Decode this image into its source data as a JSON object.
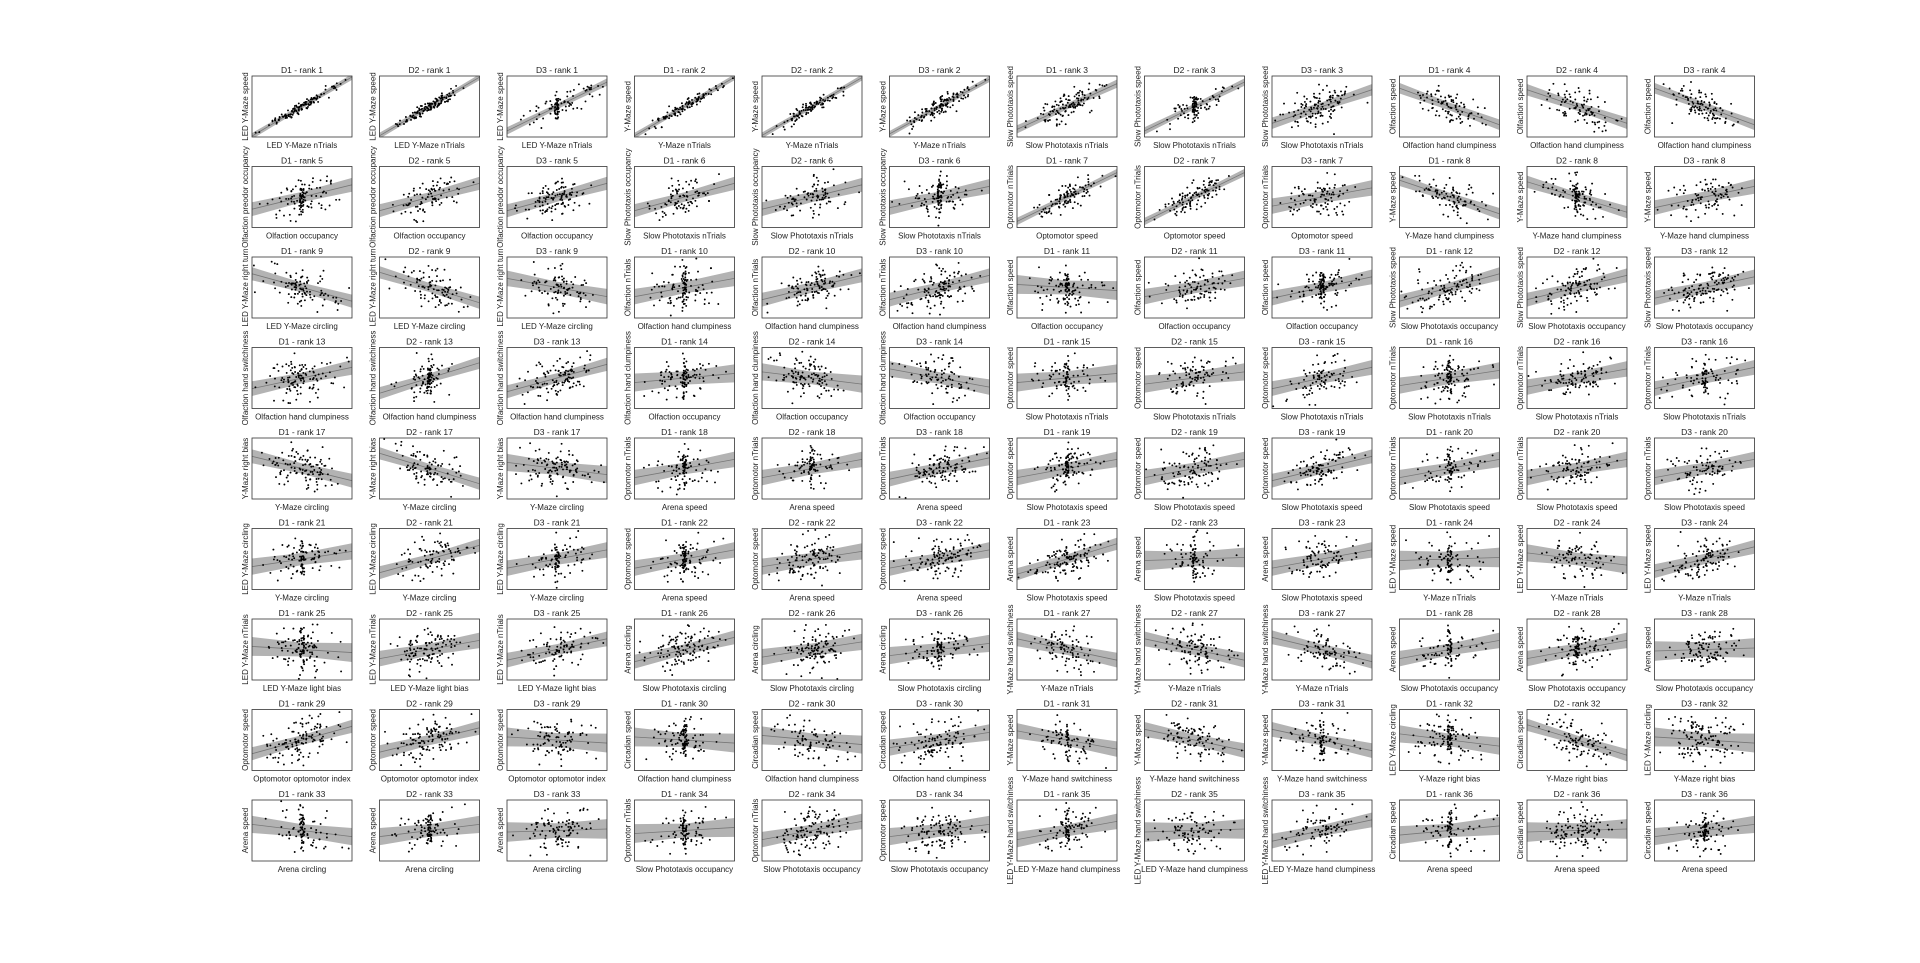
{
  "chart_data": {
    "type": "scatter",
    "layout": "grid",
    "rows": 9,
    "cols": 12,
    "grid": false,
    "regression_line": true,
    "confidence_band": true,
    "colors": {
      "points": "#000000",
      "band": "#b3b3b3",
      "line": "#777777",
      "axes": "#333333"
    },
    "panels": [
      {
        "title": "D1 - rank 1",
        "xlabel": "LED Y-Maze nTrials",
        "ylabel": "LED Y-Maze speed",
        "r": 0.97
      },
      {
        "title": "D2 - rank 1",
        "xlabel": "LED Y-Maze nTrials",
        "ylabel": "LED Y-Maze speed",
        "r": 0.96
      },
      {
        "title": "D3 - rank 1",
        "xlabel": "LED Y-Maze nTrials",
        "ylabel": "LED Y-Maze speed",
        "r": 0.8
      },
      {
        "title": "D1 - rank 2",
        "xlabel": "Y-Maze nTrials",
        "ylabel": "Y-Maze speed",
        "r": 0.96
      },
      {
        "title": "D2 - rank 2",
        "xlabel": "Y-Maze nTrials",
        "ylabel": "Y-Maze speed",
        "r": 0.95
      },
      {
        "title": "D3 - rank 2",
        "xlabel": "Y-Maze nTrials",
        "ylabel": "Y-Maze speed",
        "r": 0.9
      },
      {
        "title": "D1 - rank 3",
        "xlabel": "Slow Phototaxis nTrials",
        "ylabel": "Slow Phototaxis speed",
        "r": 0.75
      },
      {
        "title": "D2 - rank 3",
        "xlabel": "Slow Phototaxis nTrials",
        "ylabel": "Slow Phototaxis speed",
        "r": 0.8
      },
      {
        "title": "D3 - rank 3",
        "xlabel": "Slow Phototaxis nTrials",
        "ylabel": "Slow Phototaxis speed",
        "r": 0.55
      },
      {
        "title": "D1 - rank 4",
        "xlabel": "Olfaction hand clumpiness",
        "ylabel": "Olfaction speed",
        "r": -0.6
      },
      {
        "title": "D2 - rank 4",
        "xlabel": "Olfaction hand clumpiness",
        "ylabel": "Olfaction speed",
        "r": -0.55
      },
      {
        "title": "D3 - rank 4",
        "xlabel": "Olfaction hand clumpiness",
        "ylabel": "Olfaction speed",
        "r": -0.6
      },
      {
        "title": "D1 - rank 5",
        "xlabel": "Olfaction occupancy",
        "ylabel": "Olfaction preodor occupancy",
        "r": 0.4
      },
      {
        "title": "D2 - rank 5",
        "xlabel": "Olfaction occupancy",
        "ylabel": "Olfaction preodor occupancy",
        "r": 0.45
      },
      {
        "title": "D3 - rank 5",
        "xlabel": "Olfaction occupancy",
        "ylabel": "Olfaction preodor occupancy",
        "r": 0.45
      },
      {
        "title": "D1 - rank 6",
        "xlabel": "Slow Phototaxis nTrials",
        "ylabel": "Slow Phototaxis occupancy",
        "r": 0.45
      },
      {
        "title": "D2 - rank 6",
        "xlabel": "Slow Phototaxis nTrials",
        "ylabel": "Slow Phototaxis occupancy",
        "r": 0.4
      },
      {
        "title": "D3 - rank 6",
        "xlabel": "Slow Phototaxis nTrials",
        "ylabel": "Slow Phototaxis occupancy",
        "r": 0.35
      },
      {
        "title": "D1 - rank 7",
        "xlabel": "Optomotor speed",
        "ylabel": "Optomotor nTrials",
        "r": 0.8
      },
      {
        "title": "D2 - rank 7",
        "xlabel": "Optomotor speed",
        "ylabel": "Optomotor nTrials",
        "r": 0.8
      },
      {
        "title": "D3 - rank 7",
        "xlabel": "Optomotor speed",
        "ylabel": "Optomotor nTrials",
        "r": 0.3
      },
      {
        "title": "D1 - rank 8",
        "xlabel": "Y-Maze hand clumpiness",
        "ylabel": "Y-Maze speed",
        "r": -0.55
      },
      {
        "title": "D2 - rank 8",
        "xlabel": "Y-Maze hand clumpiness",
        "ylabel": "Y-Maze speed",
        "r": -0.5
      },
      {
        "title": "D3 - rank 8",
        "xlabel": "Y-Maze hand clumpiness",
        "ylabel": "Y-Maze speed",
        "r": 0.35
      },
      {
        "title": "D1 - rank 9",
        "xlabel": "LED Y-Maze circling",
        "ylabel": "LED Y-Maze right turn",
        "r": -0.45
      },
      {
        "title": "D2 - rank 9",
        "xlabel": "LED Y-Maze circling",
        "ylabel": "LED Y-Maze right turn",
        "r": -0.5
      },
      {
        "title": "D3 - rank 9",
        "xlabel": "LED Y-Maze circling",
        "ylabel": "LED Y-Maze right turn",
        "r": -0.3
      },
      {
        "title": "D1 - rank 10",
        "xlabel": "Olfaction hand clumpiness",
        "ylabel": "Olfaction nTrials",
        "r": 0.3
      },
      {
        "title": "D2 - rank 10",
        "xlabel": "Olfaction hand clumpiness",
        "ylabel": "Olfaction nTrials",
        "r": 0.4
      },
      {
        "title": "D3 - rank 10",
        "xlabel": "Olfaction hand clumpiness",
        "ylabel": "Olfaction nTrials",
        "r": 0.4
      },
      {
        "title": "D1 - rank 11",
        "xlabel": "Olfaction occupancy",
        "ylabel": "Olfaction speed",
        "r": -0.1
      },
      {
        "title": "D2 - rank 11",
        "xlabel": "Olfaction occupancy",
        "ylabel": "Olfaction speed",
        "r": 0.3
      },
      {
        "title": "D3 - rank 11",
        "xlabel": "Olfaction occupancy",
        "ylabel": "Olfaction speed",
        "r": 0.35
      },
      {
        "title": "D1 - rank 12",
        "xlabel": "Slow Phototaxis occupancy",
        "ylabel": "Slow Phototaxis speed",
        "r": 0.45
      },
      {
        "title": "D2 - rank 12",
        "xlabel": "Slow Phototaxis occupancy",
        "ylabel": "Slow Phototaxis speed",
        "r": 0.4
      },
      {
        "title": "D3 - rank 12",
        "xlabel": "Slow Phototaxis occupancy",
        "ylabel": "Slow Phototaxis speed",
        "r": 0.35
      },
      {
        "title": "D1 - rank 13",
        "xlabel": "Olfaction hand clumpiness",
        "ylabel": "Olfaction hand switchiness",
        "r": 0.35
      },
      {
        "title": "D2 - rank 13",
        "xlabel": "Olfaction hand clumpiness",
        "ylabel": "Olfaction hand switchiness",
        "r": 0.5
      },
      {
        "title": "D3 - rank 13",
        "xlabel": "Olfaction hand clumpiness",
        "ylabel": "Olfaction hand switchiness",
        "r": 0.45
      },
      {
        "title": "D1 - rank 14",
        "xlabel": "Olfaction occupancy",
        "ylabel": "Olfaction hand clumpiness",
        "r": 0.15
      },
      {
        "title": "D2 - rank 14",
        "xlabel": "Olfaction occupancy",
        "ylabel": "Olfaction hand clumpiness",
        "r": -0.2
      },
      {
        "title": "D3 - rank 14",
        "xlabel": "Olfaction occupancy",
        "ylabel": "Olfaction hand clumpiness",
        "r": -0.3
      },
      {
        "title": "D1 - rank 15",
        "xlabel": "Slow Phototaxis nTrials",
        "ylabel": "Optomotor speed",
        "r": 0.15
      },
      {
        "title": "D2 - rank 15",
        "xlabel": "Slow Phototaxis nTrials",
        "ylabel": "Optomotor speed",
        "r": 0.2
      },
      {
        "title": "D3 - rank 15",
        "xlabel": "Slow Phototaxis nTrials",
        "ylabel": "Optomotor speed",
        "r": 0.35
      },
      {
        "title": "D1 - rank 16",
        "xlabel": "Slow Phototaxis nTrials",
        "ylabel": "Optomotor nTrials",
        "r": 0.25
      },
      {
        "title": "D2 - rank 16",
        "xlabel": "Slow Phototaxis nTrials",
        "ylabel": "Optomotor nTrials",
        "r": 0.3
      },
      {
        "title": "D3 - rank 16",
        "xlabel": "Slow Phototaxis nTrials",
        "ylabel": "Optomotor nTrials",
        "r": 0.35
      },
      {
        "title": "D1 - rank 17",
        "xlabel": "Y-Maze circling",
        "ylabel": "Y-Maze right bias",
        "r": -0.4
      },
      {
        "title": "D2 - rank 17",
        "xlabel": "Y-Maze circling",
        "ylabel": "Y-Maze right bias",
        "r": -0.5
      },
      {
        "title": "D3 - rank 17",
        "xlabel": "Y-Maze circling",
        "ylabel": "Y-Maze right bias",
        "r": -0.2
      },
      {
        "title": "D1 - rank 18",
        "xlabel": "Arena speed",
        "ylabel": "Optomotor nTrials",
        "r": 0.3
      },
      {
        "title": "D2 - rank 18",
        "xlabel": "Arena speed",
        "ylabel": "Optomotor nTrials",
        "r": 0.3
      },
      {
        "title": "D3 - rank 18",
        "xlabel": "Arena speed",
        "ylabel": "Optomotor nTrials",
        "r": 0.35
      },
      {
        "title": "D1 - rank 19",
        "xlabel": "Slow Phototaxis speed",
        "ylabel": "Optomotor speed",
        "r": 0.3
      },
      {
        "title": "D2 - rank 19",
        "xlabel": "Slow Phototaxis speed",
        "ylabel": "Optomotor speed",
        "r": 0.3
      },
      {
        "title": "D3 - rank 19",
        "xlabel": "Slow Phototaxis speed",
        "ylabel": "Optomotor speed",
        "r": 0.4
      },
      {
        "title": "D1 - rank 20",
        "xlabel": "Slow Phototaxis speed",
        "ylabel": "Optomotor nTrials",
        "r": 0.3
      },
      {
        "title": "D2 - rank 20",
        "xlabel": "Slow Phototaxis speed",
        "ylabel": "Optomotor nTrials",
        "r": 0.3
      },
      {
        "title": "D3 - rank 20",
        "xlabel": "Slow Phototaxis speed",
        "ylabel": "Optomotor nTrials",
        "r": 0.3
      },
      {
        "title": "D1 - rank 21",
        "xlabel": "Y-Maze circling",
        "ylabel": "LED Y-Maze circling",
        "r": 0.25
      },
      {
        "title": "D2 - rank 21",
        "xlabel": "Y-Maze circling",
        "ylabel": "LED Y-Maze circling",
        "r": 0.45
      },
      {
        "title": "D3 - rank 21",
        "xlabel": "Y-Maze circling",
        "ylabel": "LED Y-Maze circling",
        "r": 0.3
      },
      {
        "title": "D1 - rank 22",
        "xlabel": "Arena speed",
        "ylabel": "Optomotor speed",
        "r": 0.3
      },
      {
        "title": "D2 - rank 22",
        "xlabel": "Arena speed",
        "ylabel": "Optomotor speed",
        "r": 0.25
      },
      {
        "title": "D3 - rank 22",
        "xlabel": "Arena speed",
        "ylabel": "Optomotor speed",
        "r": 0.3
      },
      {
        "title": "D1 - rank 23",
        "xlabel": "Slow Phototaxis speed",
        "ylabel": "Arena speed",
        "r": 0.5
      },
      {
        "title": "D2 - rank 23",
        "xlabel": "Slow Phototaxis speed",
        "ylabel": "Arena speed",
        "r": 0.05
      },
      {
        "title": "D3 - rank 23",
        "xlabel": "Slow Phototaxis speed",
        "ylabel": "Arena speed",
        "r": 0.3
      },
      {
        "title": "D1 - rank 24",
        "xlabel": "Y-Maze nTrials",
        "ylabel": "LED Y-Maze speed",
        "r": 0.05
      },
      {
        "title": "D2 - rank 24",
        "xlabel": "Y-Maze nTrials",
        "ylabel": "LED Y-Maze speed",
        "r": -0.2
      },
      {
        "title": "D3 - rank 24",
        "xlabel": "Y-Maze nTrials",
        "ylabel": "LED Y-Maze speed",
        "r": 0.4
      },
      {
        "title": "D1 - rank 25",
        "xlabel": "LED Y-Maze light bias",
        "ylabel": "LED Y-Maze nTrials",
        "r": -0.1
      },
      {
        "title": "D2 - rank 25",
        "xlabel": "LED Y-Maze light bias",
        "ylabel": "LED Y-Maze nTrials",
        "r": 0.3
      },
      {
        "title": "D3 - rank 25",
        "xlabel": "LED Y-Maze light bias",
        "ylabel": "LED Y-Maze nTrials",
        "r": 0.35
      },
      {
        "title": "D1 - rank 26",
        "xlabel": "Slow Phototaxis circling",
        "ylabel": "Arena circling",
        "r": 0.4
      },
      {
        "title": "D2 - rank 26",
        "xlabel": "Slow Phototaxis circling",
        "ylabel": "Arena circling",
        "r": 0.25
      },
      {
        "title": "D3 - rank 26",
        "xlabel": "Slow Phototaxis circling",
        "ylabel": "Arena circling",
        "r": 0.2
      },
      {
        "title": "D1 - rank 27",
        "xlabel": "Y-Maze nTrials",
        "ylabel": "Y-Maze hand switchiness",
        "r": -0.35
      },
      {
        "title": "D2 - rank 27",
        "xlabel": "Y-Maze nTrials",
        "ylabel": "Y-Maze hand switchiness",
        "r": -0.35
      },
      {
        "title": "D3 - rank 27",
        "xlabel": "Y-Maze nTrials",
        "ylabel": "Y-Maze hand switchiness",
        "r": -0.4
      },
      {
        "title": "D1 - rank 28",
        "xlabel": "Slow Phototaxis occupancy",
        "ylabel": "Arena speed",
        "r": 0.3
      },
      {
        "title": "D2 - rank 28",
        "xlabel": "Slow Phototaxis occupancy",
        "ylabel": "Arena speed",
        "r": 0.3
      },
      {
        "title": "D3 - rank 28",
        "xlabel": "Slow Phototaxis occupancy",
        "ylabel": "Arena speed",
        "r": 0.05
      },
      {
        "title": "D1 - rank 29",
        "xlabel": "Optomotor optomotor index",
        "ylabel": "Optomotor speed",
        "r": 0.45
      },
      {
        "title": "D2 - rank 29",
        "xlabel": "Optomotor optomotor index",
        "ylabel": "Optomotor speed",
        "r": 0.4
      },
      {
        "title": "D3 - rank 29",
        "xlabel": "Optomotor optomotor index",
        "ylabel": "Optomotor speed",
        "r": -0.1
      },
      {
        "title": "D1 - rank 30",
        "xlabel": "Olfaction hand clumpiness",
        "ylabel": "Circadian speed",
        "r": -0.1
      },
      {
        "title": "D2 - rank 30",
        "xlabel": "Olfaction hand clumpiness",
        "ylabel": "Circadian speed",
        "r": -0.15
      },
      {
        "title": "D3 - rank 30",
        "xlabel": "Olfaction hand clumpiness",
        "ylabel": "Circadian speed",
        "r": 0.25
      },
      {
        "title": "D1 - rank 31",
        "xlabel": "Y-Maze hand switchiness",
        "ylabel": "Y-Maze speed",
        "r": -0.3
      },
      {
        "title": "D2 - rank 31",
        "xlabel": "Y-Maze hand switchiness",
        "ylabel": "Y-Maze speed",
        "r": -0.35
      },
      {
        "title": "D3 - rank 31",
        "xlabel": "Y-Maze hand switchiness",
        "ylabel": "Y-Maze speed",
        "r": -0.35
      },
      {
        "title": "D1 - rank 32",
        "xlabel": "Y-Maze right bias",
        "ylabel": "LED Y-Maze circling",
        "r": -0.2
      },
      {
        "title": "D2 - rank 32",
        "xlabel": "Y-Maze right bias",
        "ylabel": "Circadian speed",
        "r": -0.5
      },
      {
        "title": "D3 - rank 32",
        "xlabel": "Y-Maze right bias",
        "ylabel": "LED Y-Maze circling",
        "r": -0.1
      },
      {
        "title": "D1 - rank 33",
        "xlabel": "Arena circling",
        "ylabel": "Arena speed",
        "r": -0.2
      },
      {
        "title": "D2 - rank 33",
        "xlabel": "Arena circling",
        "ylabel": "Arena speed",
        "r": 0.2
      },
      {
        "title": "D3 - rank 33",
        "xlabel": "Arena circling",
        "ylabel": "Arena speed",
        "r": 0.05
      },
      {
        "title": "D1 - rank 34",
        "xlabel": "Slow Phototaxis occupancy",
        "ylabel": "Optomotor nTrials",
        "r": 0.1
      },
      {
        "title": "D2 - rank 34",
        "xlabel": "Slow Phototaxis occupancy",
        "ylabel": "Optomotor nTrials",
        "r": 0.3
      },
      {
        "title": "D3 - rank 34",
        "xlabel": "Slow Phototaxis occupancy",
        "ylabel": "Optomotor speed",
        "r": 0.2
      },
      {
        "title": "D1 - rank 35",
        "xlabel": "LED Y-Maze hand clumpiness",
        "ylabel": "LED Y-Maze hand switchiness",
        "r": 0.3
      },
      {
        "title": "D2 - rank 35",
        "xlabel": "LED Y-Maze hand clumpiness",
        "ylabel": "LED Y-Maze hand switchiness",
        "r": 0.05
      },
      {
        "title": "D3 - rank 35",
        "xlabel": "LED Y-Maze hand clumpiness",
        "ylabel": "LED Y-Maze hand switchiness",
        "r": 0.35
      },
      {
        "title": "D1 - rank 36",
        "xlabel": "Arena speed",
        "ylabel": "Circadian speed",
        "r": 0.15
      },
      {
        "title": "D2 - rank 36",
        "xlabel": "Arena speed",
        "ylabel": "Circadian speed",
        "r": 0.05
      },
      {
        "title": "D3 - rank 36",
        "xlabel": "Arena speed",
        "ylabel": "Circadian speed",
        "r": 0.2
      }
    ]
  }
}
